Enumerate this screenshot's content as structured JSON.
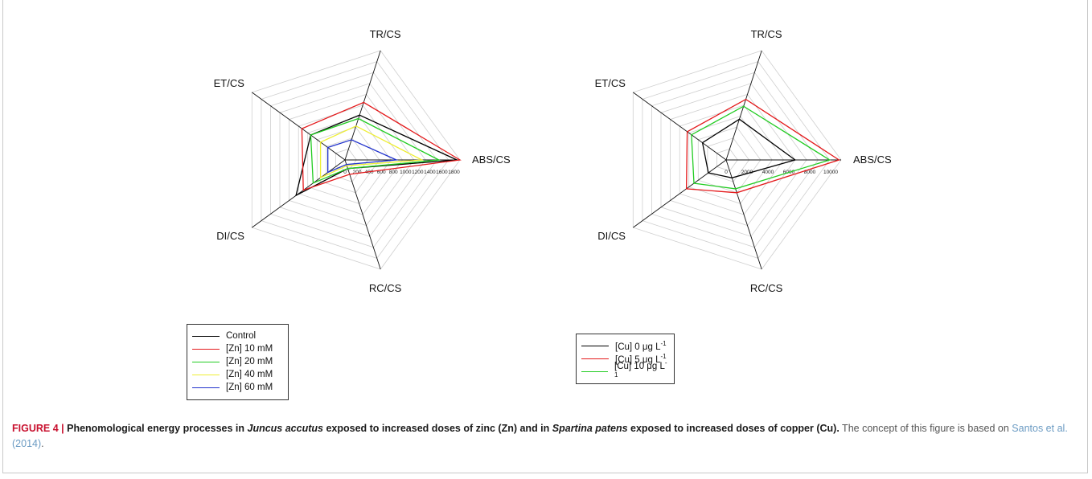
{
  "caption": {
    "label": "FIGURE 4 |",
    "title_part1": "Phenomological energy processes in ",
    "title_italic1": "Juncus accutus",
    "title_part2": " exposed to increased doses of zinc (Zn) and in ",
    "title_italic2": "Spartina patens",
    "title_part3": " exposed to increased doses of copper (Cu).",
    "body_part1": " The concept of this figure is based on ",
    "ref": "Santos et al. (2014)",
    "body_part2": "."
  },
  "chart_data": [
    {
      "type": "radar",
      "axes": [
        "ABS/CS",
        "TR/CS",
        "ET/CS",
        "DI/CS",
        "RC/CS"
      ],
      "rmax": 1900,
      "ticks": [
        0,
        200,
        400,
        600,
        800,
        1000,
        1200,
        1400,
        1600,
        1800
      ],
      "tick_labels": [
        "0",
        "200",
        "400",
        "600",
        "800",
        "1000",
        "1200",
        "1400",
        "1600",
        "1800"
      ],
      "grid_rings": 10,
      "series": [
        {
          "name": "Control",
          "color": "#000000",
          "values": [
            1850,
            780,
            700,
            1000,
            150
          ]
        },
        {
          "name": "[Zn] 10 mM",
          "color": "#e41a1c",
          "values": [
            1900,
            1000,
            880,
            850,
            250
          ]
        },
        {
          "name": "[Zn] 20 mM",
          "color": "#22cc22",
          "values": [
            1550,
            720,
            700,
            650,
            150
          ]
        },
        {
          "name": "[Zn] 40 mM",
          "color": "#eeee33",
          "values": [
            1270,
            590,
            500,
            500,
            100
          ]
        },
        {
          "name": "[Zn] 60 mM",
          "color": "#2233cc",
          "values": [
            850,
            350,
            350,
            350,
            80
          ]
        }
      ],
      "legend": [
        "Control",
        "[Zn] 10 mM",
        "[Zn] 20 mM",
        "[Zn] 40 mM",
        "[Zn] 60 mM"
      ]
    },
    {
      "type": "radar",
      "axes": [
        "ABS/CS",
        "TR/CS",
        "ET/CS",
        "DI/CS",
        "RC/CS"
      ],
      "rmax": 11000,
      "ticks": [
        0,
        2000,
        4000,
        6000,
        8000,
        10000
      ],
      "tick_labels": [
        "0",
        "2000",
        "4000",
        "6000",
        "8000",
        "10000"
      ],
      "grid_rings": 10,
      "series": [
        {
          "name": "[Cu] 0 μg L−1",
          "color": "#000000",
          "values": [
            6600,
            4100,
            2800,
            2100,
            1800
          ]
        },
        {
          "name": "[Cu] 5 μg L−1",
          "color": "#e41a1c",
          "values": [
            10800,
            6100,
            4600,
            4700,
            3300
          ]
        },
        {
          "name": "[Cu] 10 μg L−1",
          "color": "#22cc22",
          "values": [
            9900,
            5400,
            4100,
            3800,
            2900
          ]
        }
      ],
      "legend": [
        "[Cu] 0 μg L",
        "[Cu] 5 μg L",
        "[Cu] 10 μg L"
      ],
      "legend_superscript": "-1"
    }
  ]
}
